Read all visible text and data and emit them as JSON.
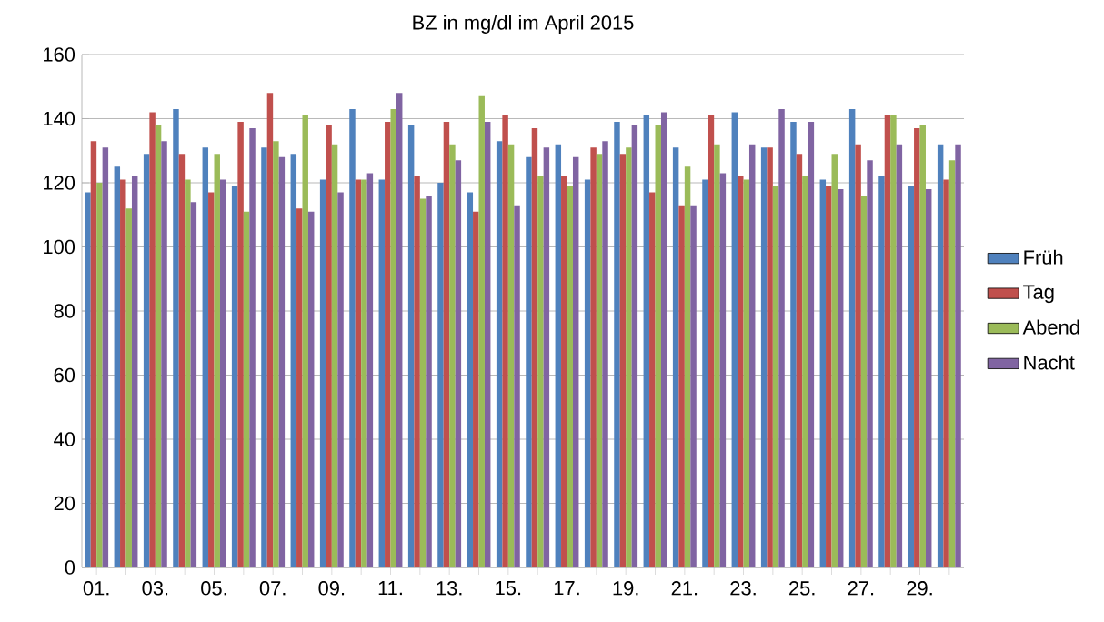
{
  "chart_data": {
    "type": "bar",
    "title": "BZ in mg/dl im April 2015",
    "categories": [
      "01.",
      null,
      "03.",
      null,
      "05.",
      null,
      "07.",
      null,
      "09.",
      null,
      "11.",
      null,
      "13.",
      null,
      "15.",
      null,
      "17.",
      null,
      "19.",
      null,
      "21.",
      null,
      "23.",
      null,
      "25.",
      null,
      "27.",
      null,
      "29.",
      null
    ],
    "series": [
      {
        "name": "Früh",
        "color": "#4f81bd",
        "values": [
          117,
          125,
          129,
          143,
          131,
          119,
          131,
          129,
          121,
          143,
          121,
          138,
          120,
          117,
          133,
          128,
          132,
          121,
          139,
          141,
          131,
          121,
          142,
          131,
          139,
          121,
          143,
          122,
          119,
          132
        ]
      },
      {
        "name": "Tag",
        "color": "#c0504d",
        "values": [
          133,
          121,
          142,
          129,
          117,
          139,
          148,
          112,
          138,
          121,
          139,
          122,
          139,
          111,
          141,
          137,
          122,
          131,
          129,
          117,
          113,
          141,
          122,
          131,
          129,
          119,
          132,
          141,
          137,
          121
        ]
      },
      {
        "name": "Abend",
        "color": "#9bbb59",
        "values": [
          120,
          112,
          138,
          121,
          129,
          111,
          133,
          141,
          132,
          121,
          143,
          115,
          132,
          147,
          132,
          122,
          119,
          129,
          131,
          138,
          125,
          132,
          121,
          119,
          122,
          129,
          116,
          141,
          138,
          127
        ]
      },
      {
        "name": "Nacht",
        "color": "#8064a2",
        "values": [
          131,
          122,
          133,
          114,
          121,
          137,
          128,
          111,
          117,
          123,
          148,
          116,
          127,
          139,
          113,
          131,
          128,
          133,
          138,
          142,
          113,
          123,
          132,
          143,
          139,
          118,
          127,
          132,
          118,
          132
        ]
      }
    ],
    "ylim": [
      0,
      160
    ],
    "yticks": [
      0,
      20,
      40,
      60,
      80,
      100,
      120,
      140,
      160
    ],
    "grid": "y",
    "legend": "right"
  }
}
